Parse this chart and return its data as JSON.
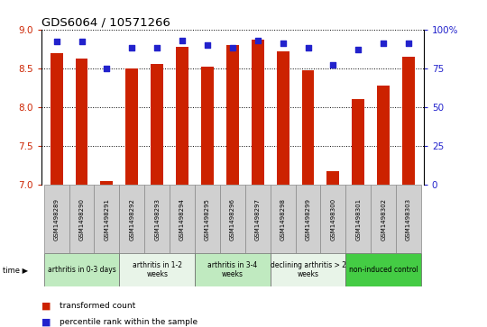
{
  "title": "GDS6064 / 10571266",
  "samples": [
    "GSM1498289",
    "GSM1498290",
    "GSM1498291",
    "GSM1498292",
    "GSM1498293",
    "GSM1498294",
    "GSM1498295",
    "GSM1498296",
    "GSM1498297",
    "GSM1498298",
    "GSM1498299",
    "GSM1498300",
    "GSM1498301",
    "GSM1498302",
    "GSM1498303"
  ],
  "red_values": [
    8.7,
    8.62,
    7.05,
    8.5,
    8.55,
    8.78,
    8.52,
    8.8,
    8.87,
    8.72,
    8.48,
    7.18,
    8.1,
    8.28,
    8.65
  ],
  "blue_values": [
    92,
    92,
    75,
    88,
    88,
    93,
    90,
    88,
    93,
    91,
    88,
    77,
    87,
    91,
    91
  ],
  "groups": [
    {
      "label": "arthritis in 0-3 days",
      "start": 0,
      "end": 3,
      "color": "#c0eac0"
    },
    {
      "label": "arthritis in 1-2\nweeks",
      "start": 3,
      "end": 6,
      "color": "#e8f4e8"
    },
    {
      "label": "arthritis in 3-4\nweeks",
      "start": 6,
      "end": 9,
      "color": "#c0eac0"
    },
    {
      "label": "declining arthritis > 2\nweeks",
      "start": 9,
      "end": 12,
      "color": "#e8f4e8"
    },
    {
      "label": "non-induced control",
      "start": 12,
      "end": 15,
      "color": "#44cc44"
    }
  ],
  "ylim_left": [
    7.0,
    9.0
  ],
  "ylim_right": [
    0,
    100
  ],
  "yticks_left": [
    7.0,
    7.5,
    8.0,
    8.5,
    9.0
  ],
  "yticks_right": [
    0,
    25,
    50,
    75,
    100
  ],
  "bar_color": "#cc2200",
  "dot_color": "#2222cc",
  "bar_bottom": 7.0,
  "cell_color": "#d0d0d0",
  "bar_width": 0.5
}
